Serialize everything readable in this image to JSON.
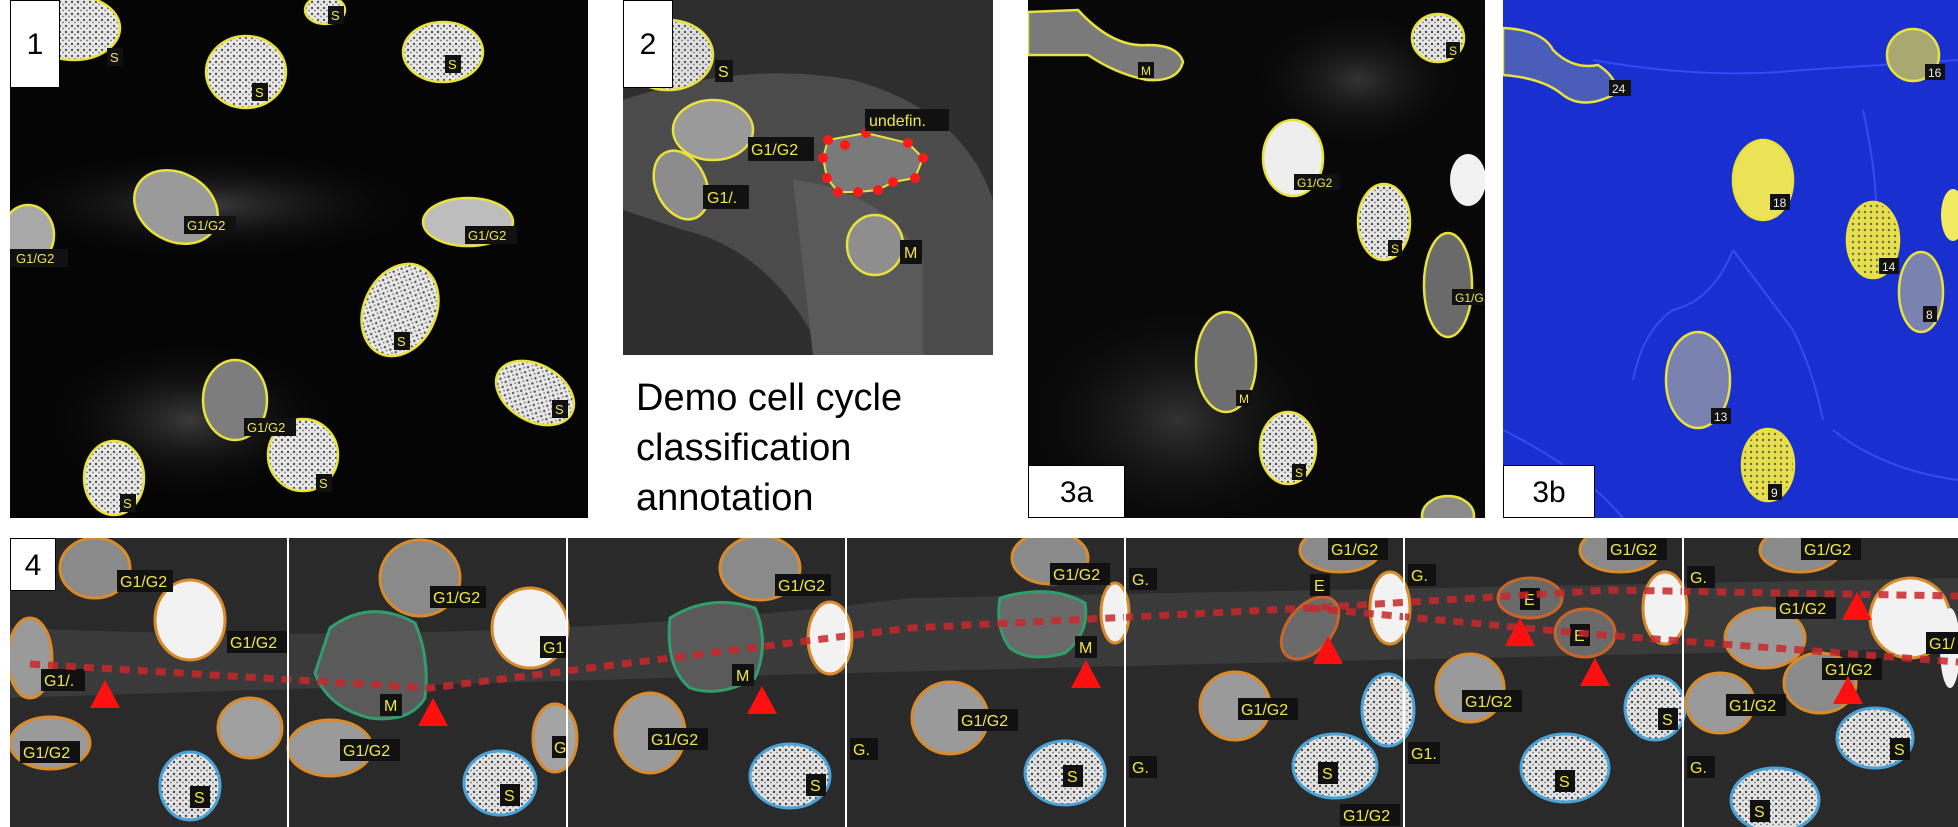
{
  "figure": {
    "caption": {
      "line1": "Demo cell cycle",
      "line2": "classification",
      "line3": "annotation"
    },
    "colors": {
      "contour_yellow": "#e8e23a",
      "contour_orange": "#d98a2a",
      "contour_blue": "#4aa3d8",
      "contour_green": "#2f9e6c",
      "contour_dark_orange": "#c8642a",
      "marker_red": "#ff1010",
      "track_red": "#c8282a",
      "cell_label_bg": "#111111",
      "cell_label_text": "#f0e84a",
      "overlay_blue": "#1a2fd0"
    },
    "panels": [
      {
        "id": "p1",
        "label": "1",
        "cell_labels": [
          "S",
          "S",
          "S",
          "S",
          "G1/G2",
          "G1/G2",
          "G1/G2",
          "S",
          "S",
          "G1/G2",
          "S",
          "S"
        ]
      },
      {
        "id": "p2",
        "label": "2",
        "cell_labels": [
          "S",
          "G1/G2",
          "G1/.",
          "undefin.",
          "M"
        ]
      },
      {
        "id": "p3a",
        "label": "3a",
        "cell_labels": [
          "M",
          "S",
          "G1/G2",
          "S",
          "G1/G",
          "M",
          "S"
        ]
      },
      {
        "id": "p3b",
        "label": "3b",
        "cell_labels": [
          "24",
          "16",
          "18",
          "14",
          "8",
          "13",
          "9"
        ]
      },
      {
        "id": "p4",
        "label": "4",
        "frames": [
          {
            "cell_labels": [
              "G1/G2",
              "G1/G2",
              "G1/.",
              "G1/G2",
              "S"
            ]
          },
          {
            "cell_labels": [
              "G1/G2",
              "G1",
              "M",
              "G1/G2",
              "S",
              "G"
            ]
          },
          {
            "cell_labels": [
              "G1/G2",
              "M",
              "G1/G2",
              "S"
            ]
          },
          {
            "cell_labels": [
              "G1/G2",
              "M",
              "G1/G2",
              "G.",
              "S"
            ]
          },
          {
            "cell_labels": [
              "G1/G2",
              "G.",
              "E",
              "G1/G2",
              "G.",
              "S",
              "G1/G2"
            ]
          },
          {
            "cell_labels": [
              "G1/G2",
              "G.",
              "E",
              "E",
              "G1/G2",
              "G1.",
              "S",
              "S"
            ]
          },
          {
            "cell_labels": [
              "G1/G2",
              "G.",
              "G1/G2",
              "G1/G2",
              "G1/G2",
              "S",
              "G.",
              "S",
              "G1/"
            ]
          }
        ]
      }
    ]
  }
}
